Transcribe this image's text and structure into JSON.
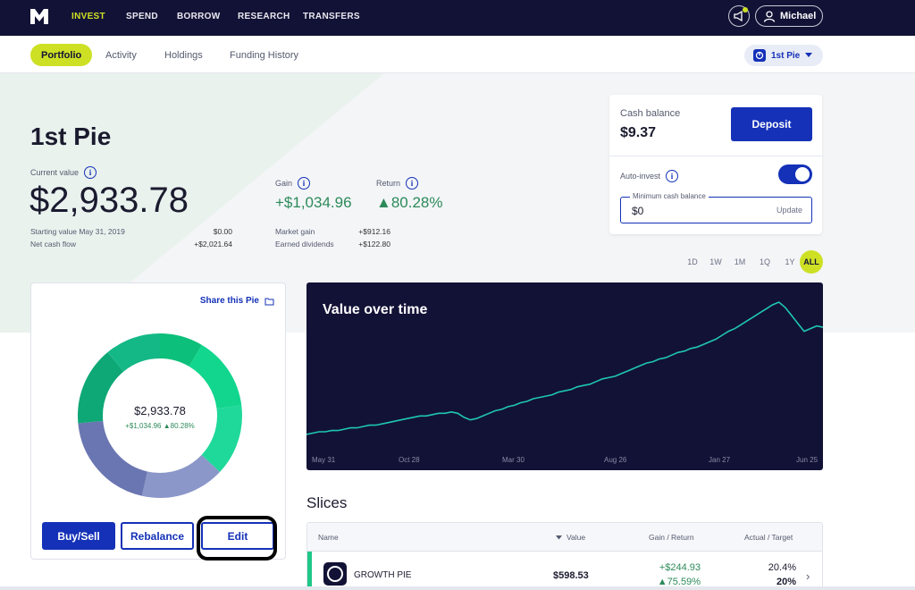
{
  "nav": {
    "items": [
      {
        "label": "INVEST",
        "active": true
      },
      {
        "label": "SPEND"
      },
      {
        "label": "BORROW"
      },
      {
        "label": "RESEARCH"
      },
      {
        "label": "TRANSFERS"
      }
    ],
    "user": "Michael"
  },
  "subnav": {
    "tabs": [
      {
        "label": "Portfolio",
        "active": true
      },
      {
        "label": "Activity"
      },
      {
        "label": "Holdings"
      },
      {
        "label": "Funding History"
      }
    ],
    "pie_select": "1st Pie"
  },
  "summary": {
    "title": "1st Pie",
    "current_value_label": "Current value",
    "current_value": "$2,933.78",
    "starting_label": "Starting value May 31, 2019",
    "starting_value": "$0.00",
    "net_cash_label": "Net cash flow",
    "net_cash_value": "+$2,021.64",
    "gain_label": "Gain",
    "gain_value": "+$1,034.96",
    "return_label": "Return",
    "return_value": "▲80.28%",
    "market_gain_label": "Market gain",
    "market_gain_value": "+$912.16",
    "dividends_label": "Earned dividends",
    "dividends_value": "+$122.80"
  },
  "cash": {
    "label": "Cash balance",
    "value": "$9.37",
    "deposit_label": "Deposit",
    "autoinvest_label": "Auto-invest",
    "autoinvest_on": true,
    "min_label": "Minimum cash balance",
    "min_value": "$0",
    "update_label": "Update"
  },
  "ranges": [
    "1D",
    "1W",
    "1M",
    "1Q",
    "1Y",
    "ALL"
  ],
  "active_range": "ALL",
  "pie_card": {
    "share_label": "Share this Pie",
    "center_value": "$2,933.78",
    "center_sub": "+$1,034.96 ▲80.28%",
    "buysell_label": "Buy/Sell",
    "rebalance_label": "Rebalance",
    "edit_label": "Edit",
    "segments": [
      {
        "color": "#0cbf7a",
        "fraction": 0.085
      },
      {
        "color": "#12d68e",
        "fraction": 0.145
      },
      {
        "color": "#1fd99a",
        "fraction": 0.14
      },
      {
        "color": "#8b97c9",
        "fraction": 0.165
      },
      {
        "color": "#6a76b1",
        "fraction": 0.2
      },
      {
        "color": "#0ea776",
        "fraction": 0.155
      },
      {
        "color": "#14b886",
        "fraction": 0.11
      }
    ]
  },
  "chart_data": {
    "type": "line",
    "title": "Value over time",
    "x_ticks": [
      "May 31",
      "Oct 28",
      "Mar 30",
      "Aug 26",
      "Jan 27",
      "Jun 25"
    ],
    "color": "#1fc7b0",
    "background": "#121236",
    "series": [
      {
        "values": [
          0,
          1,
          2,
          2,
          3,
          3,
          4,
          5,
          5,
          6,
          7,
          7,
          8,
          9,
          10,
          11,
          12,
          13,
          14,
          14,
          15,
          16,
          16,
          17,
          16,
          13,
          11,
          12,
          14,
          16,
          18,
          19,
          21,
          22,
          24,
          25,
          27,
          28,
          29,
          30,
          32,
          33,
          34,
          36,
          37,
          38,
          40,
          42,
          43,
          44,
          46,
          48,
          50,
          52,
          54,
          55,
          57,
          58,
          60,
          62,
          63,
          65,
          66,
          68,
          70,
          72,
          75,
          78,
          80,
          83,
          86,
          89,
          92,
          95,
          98,
          100,
          96,
          90,
          84,
          78,
          80,
          82,
          81
        ]
      }
    ]
  },
  "slices": {
    "title": "Slices",
    "headers": {
      "name": "Name",
      "value": "Value",
      "gain": "Gain / Return",
      "actual": "Actual / Target"
    },
    "rows": [
      {
        "name": "GROWTH PIE",
        "value": "$598.53",
        "gain": "+$244.93",
        "return": "▲75.59%",
        "actual": "20.4%",
        "target": "20%",
        "color": "#1fc889"
      }
    ]
  }
}
